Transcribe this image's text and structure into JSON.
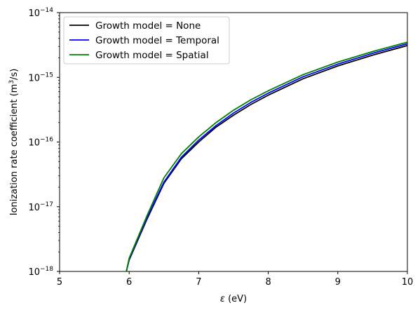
{
  "chart_data": {
    "type": "line",
    "title": "",
    "xlabel": {
      "symbol": "ε",
      "unit": "(eV)"
    },
    "ylabel": {
      "prefix": "Ionization rate coefficient (m",
      "sup": "3",
      "suffix": "/s)"
    },
    "xlim": [
      5,
      10
    ],
    "ylim": [
      1e-18,
      1e-14
    ],
    "yscale": "log",
    "grid": false,
    "legend": "upper-left",
    "x_ticks": [
      "5",
      "6",
      "7",
      "8",
      "9",
      "10"
    ],
    "y_ticks": [
      {
        "base": "10",
        "exp": "−18"
      },
      {
        "base": "10",
        "exp": "−17"
      },
      {
        "base": "10",
        "exp": "−16"
      },
      {
        "base": "10",
        "exp": "−15"
      },
      {
        "base": "10",
        "exp": "−14"
      }
    ],
    "series": [
      {
        "name": "Growth model = None",
        "color": "#000000",
        "x": [
          5.96,
          6.0,
          6.25,
          6.5,
          6.75,
          7.0,
          7.25,
          7.5,
          7.75,
          8.0,
          8.5,
          9.0,
          9.5,
          10.0
        ],
        "y": [
          1e-18,
          1.5e-18,
          6.2e-18,
          2.3e-17,
          5.5e-17,
          1e-16,
          1.7e-16,
          2.6e-16,
          3.8e-16,
          5.3e-16,
          9.5e-16,
          1.5e-15,
          2.2e-15,
          3.1e-15
        ]
      },
      {
        "name": "Growth model = Temporal",
        "color": "#0000ff",
        "x": [
          5.96,
          6.0,
          6.25,
          6.5,
          6.75,
          7.0,
          7.25,
          7.5,
          7.75,
          8.0,
          8.5,
          9.0,
          9.5,
          10.0
        ],
        "y": [
          1e-18,
          1.55e-18,
          6.5e-18,
          2.4e-17,
          5.8e-17,
          1.07e-16,
          1.8e-16,
          2.8e-16,
          4.1e-16,
          5.7e-16,
          1.02e-15,
          1.6e-15,
          2.35e-15,
          3.3e-15
        ]
      },
      {
        "name": "Growth model = Spatial",
        "color": "#008000",
        "x": [
          5.96,
          6.0,
          6.25,
          6.5,
          6.75,
          7.0,
          7.25,
          7.5,
          7.75,
          8.0,
          8.5,
          9.0,
          9.5,
          10.0
        ],
        "y": [
          1e-18,
          1.6e-18,
          7e-18,
          2.8e-17,
          6.6e-17,
          1.2e-16,
          2e-16,
          3.1e-16,
          4.5e-16,
          6.2e-16,
          1.1e-15,
          1.72e-15,
          2.5e-15,
          3.5e-15
        ]
      }
    ]
  }
}
